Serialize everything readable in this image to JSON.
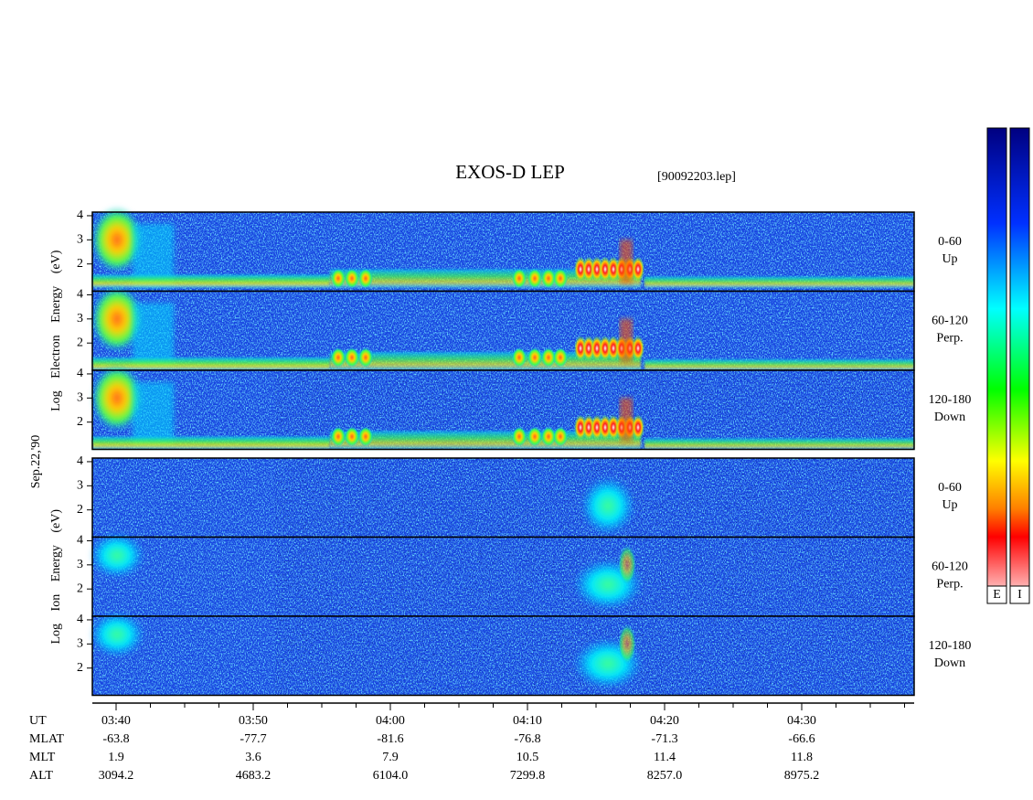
{
  "chart_data": {
    "type": "spectrogram",
    "title": "EXOS-D LEP",
    "subtitle": "[90092203.lep]",
    "date_label": "Sep.22,'90",
    "ylim": [
      0.87,
      4.15
    ],
    "yticks": [
      2,
      3,
      4
    ],
    "groups": [
      {
        "ylabel": "Log Electron Energy (eV)",
        "species": "electron",
        "panels": [
          {
            "label": "0-60",
            "sublabel": "Up"
          },
          {
            "label": "60-120",
            "sublabel": "Perp."
          },
          {
            "label": "120-180",
            "sublabel": "Down"
          }
        ]
      },
      {
        "ylabel": "Log Ion Energy (eV)",
        "species": "ion",
        "panels": [
          {
            "label": "0-60",
            "sublabel": "Up"
          },
          {
            "label": "60-120",
            "sublabel": "Perp."
          },
          {
            "label": "120-180",
            "sublabel": "Down"
          }
        ]
      }
    ],
    "x_rows": [
      {
        "name": "UT",
        "values": [
          "03:40",
          "03:50",
          "04:00",
          "04:10",
          "04:20",
          "04:30"
        ]
      },
      {
        "name": "MLAT",
        "values": [
          "-63.8",
          "-77.7",
          "-81.6",
          "-76.8",
          "-71.3",
          "-66.6"
        ]
      },
      {
        "name": "MLT",
        "values": [
          "1.9",
          "3.6",
          "7.9",
          "10.5",
          "11.4",
          "11.8"
        ]
      },
      {
        "name": "ALT",
        "values": [
          "3094.2",
          "4683.2",
          "6104.0",
          "7299.8",
          "8257.0",
          "8975.2"
        ]
      }
    ],
    "colorbars": [
      "E",
      "I"
    ]
  }
}
